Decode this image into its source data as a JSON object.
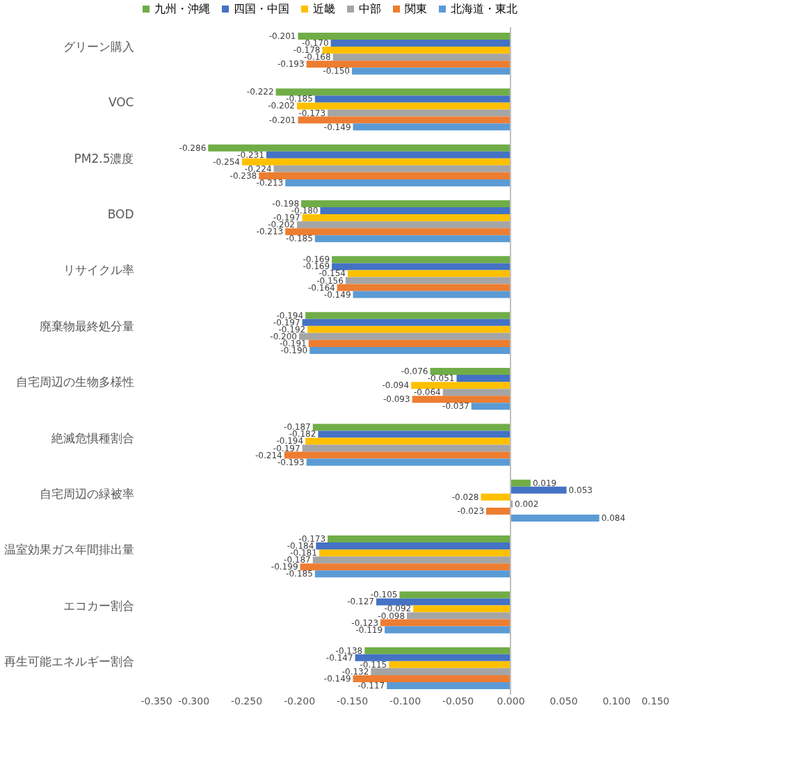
{
  "chart_data": {
    "type": "bar",
    "orientation": "horizontal",
    "categories": [
      "グリーン購入",
      "VOC",
      "PM2.5濃度",
      "BOD",
      "リサイクル率",
      "廃棄物最終処分量",
      "自宅周辺の生物多様性",
      "絶滅危惧種割合",
      "自宅周辺の緑被率",
      "温室効果ガス年間排出量",
      "エコカー割合",
      "再生可能エネルギー割合"
    ],
    "series": [
      {
        "name": "九州・沖縄",
        "color": "#70ad47",
        "values": [
          -0.201,
          -0.222,
          -0.286,
          -0.198,
          -0.169,
          -0.194,
          -0.076,
          -0.187,
          0.019,
          -0.173,
          -0.105,
          -0.138
        ],
        "value_labels": [
          "-0.201",
          "-0.222",
          "-0.286",
          "-0.198",
          "-0.169",
          "-0.194",
          "-0.076",
          "-0.187",
          "0.019",
          "-0.173",
          "-0.105",
          "-0.138"
        ]
      },
      {
        "name": "四国・中国",
        "color": "#4472c4",
        "values": [
          -0.17,
          -0.185,
          -0.231,
          -0.18,
          -0.169,
          -0.197,
          -0.051,
          -0.182,
          0.053,
          -0.184,
          -0.127,
          -0.147
        ],
        "value_labels": [
          "-0.170",
          "-0.185",
          "-0.231",
          "-0.180",
          "-0.169",
          "-0.197",
          "-0.051",
          "-0.182",
          "0.053",
          "-0.184",
          "-0.127",
          "-0.147"
        ]
      },
      {
        "name": "近畿",
        "color": "#ffc000",
        "values": [
          -0.178,
          -0.202,
          -0.254,
          -0.197,
          -0.154,
          -0.192,
          -0.094,
          -0.194,
          -0.028,
          -0.181,
          -0.092,
          -0.115
        ],
        "value_labels": [
          "-0.178",
          "-0.202",
          "-0.254",
          "-0.197",
          "-0.154",
          "-0.192",
          "-0.094",
          "-0.194",
          "-0.028",
          "-0.181",
          "-0.092",
          "-0.115"
        ]
      },
      {
        "name": "中部",
        "color": "#a5a5a5",
        "values": [
          -0.168,
          -0.173,
          -0.224,
          -0.202,
          -0.156,
          -0.2,
          -0.064,
          -0.197,
          0.002,
          -0.187,
          -0.098,
          -0.132
        ],
        "value_labels": [
          "-0.168",
          "-0.173",
          "-0.224",
          "-0.202",
          "-0.156",
          "-0.200",
          "-0.064",
          "-0.197",
          "0.002",
          "-0.187",
          "-0.098",
          "-0.132"
        ]
      },
      {
        "name": "関東",
        "color": "#ed7d31",
        "values": [
          -0.193,
          -0.201,
          -0.238,
          -0.213,
          -0.164,
          -0.191,
          -0.093,
          -0.214,
          -0.023,
          -0.199,
          -0.123,
          -0.149
        ],
        "value_labels": [
          "-0.193",
          "-0.201",
          "-0.238",
          "-0.213",
          "-0.164",
          "-0.191",
          "-0.093",
          "-0.214",
          "-0.023",
          "-0.199",
          "-0.123",
          "-0.149"
        ]
      },
      {
        "name": "北海道・東北",
        "color": "#5b9bd5",
        "values": [
          -0.15,
          -0.149,
          -0.213,
          -0.185,
          -0.149,
          -0.19,
          -0.037,
          -0.193,
          0.084,
          -0.185,
          -0.119,
          -0.117
        ],
        "value_labels": [
          "-0.150",
          "-0.149",
          "-0.213",
          "-0.185",
          "-0.149",
          "-0.190",
          "-0.037",
          "-0.193",
          "0.084",
          "-0.185",
          "-0.119",
          "-0.117"
        ]
      }
    ],
    "xlim": [
      -0.35,
      0.15
    ],
    "xticks": [
      {
        "value": -0.35,
        "label": "-0.350"
      },
      {
        "value": -0.3,
        "label": "-0.300"
      },
      {
        "value": -0.25,
        "label": "-0.250"
      },
      {
        "value": -0.2,
        "label": "-0.200"
      },
      {
        "value": -0.15,
        "label": "-0.150"
      },
      {
        "value": -0.1,
        "label": "-0.100"
      },
      {
        "value": -0.05,
        "label": "-0.050"
      },
      {
        "value": 0,
        "label": "0.000"
      },
      {
        "value": 0.05,
        "label": "0.050"
      },
      {
        "value": 0.1,
        "label": "0.100"
      },
      {
        "value": 0.15,
        "label": "0.150"
      }
    ],
    "ref_lines": [
      {
        "axis": "x",
        "value": 0,
        "color": "#bfbfbf"
      }
    ],
    "grid": false,
    "legend": "top"
  }
}
